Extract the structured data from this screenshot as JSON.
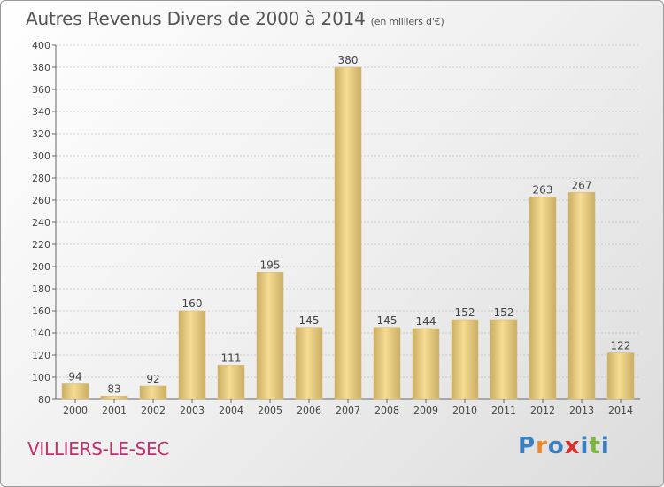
{
  "header": {
    "title": "Autres Revenus Divers de 2000 à 2014",
    "unit": "(en milliers d'€)"
  },
  "footer": {
    "commune": "VILLIERS-LE-SEC",
    "logo_letters": [
      "P",
      "r",
      "o",
      "x",
      "i",
      "t",
      "i"
    ],
    "logo_colors": [
      "#3a7fc1",
      "#e8892b",
      "#3a7fc1",
      "#d9302b",
      "#3a7fc1",
      "#79b83a",
      "#3a7fc1"
    ]
  },
  "colors": {
    "bar_light": "#f6dc94",
    "bar_dark": "#c9ad63",
    "grid": "#aaaaaa",
    "text": "#444444",
    "commune": "#c0306c"
  },
  "chart_data": {
    "type": "bar",
    "categories": [
      "2000",
      "2001",
      "2002",
      "2003",
      "2004",
      "2005",
      "2006",
      "2007",
      "2008",
      "2009",
      "2010",
      "2011",
      "2012",
      "2013",
      "2014"
    ],
    "values": [
      94,
      83,
      92,
      160,
      111,
      195,
      145,
      380,
      145,
      144,
      152,
      152,
      263,
      267,
      122
    ],
    "data_labels": [
      "94",
      "83",
      "92",
      "160",
      "111",
      "195",
      "145",
      "380",
      "145",
      "144",
      "152",
      "152",
      "263",
      "267",
      "122"
    ],
    "yticks": [
      80,
      100,
      120,
      140,
      160,
      180,
      200,
      220,
      240,
      260,
      280,
      300,
      320,
      340,
      360,
      380,
      400
    ],
    "ylim": [
      80,
      400
    ],
    "grid": true,
    "title": "Autres Revenus Divers de 2000 à 2014",
    "xlabel": "",
    "ylabel": ""
  }
}
